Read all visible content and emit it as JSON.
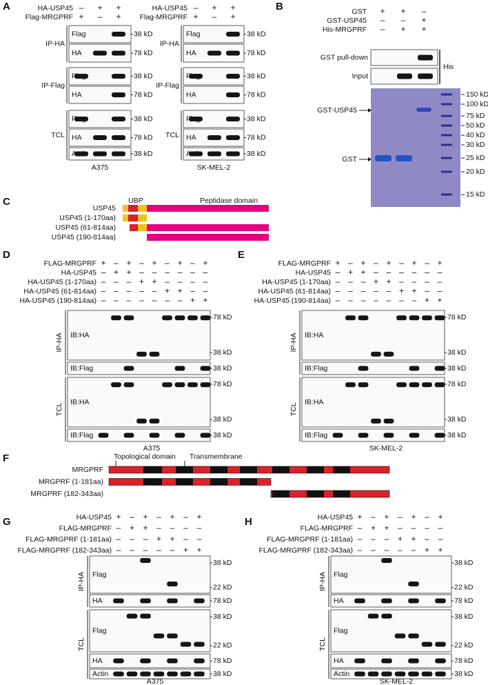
{
  "A": {
    "label": "A",
    "blots": [
      {
        "rows": [
          {
            "name": "HA-USP45",
            "signs": [
              "–",
              "+",
              "+"
            ]
          },
          {
            "name": "Flag-MRGPRF",
            "signs": [
              "+",
              "–",
              "+"
            ]
          }
        ],
        "groups": [
          {
            "name": "IP-HA",
            "lanes": [
              {
                "name": "Flag",
                "markers": [
                  "38 kD"
                ]
              },
              {
                "name": "HA",
                "markers": [
                  "78 kD"
                ]
              }
            ]
          },
          {
            "name": "IP-Flag",
            "lanes": [
              {
                "name": "Flag",
                "markers": [
                  "38 kD"
                ]
              },
              {
                "name": "HA",
                "markers": [
                  "78 kD"
                ]
              }
            ]
          },
          {
            "name": "TCL",
            "lanes": [
              {
                "name": "Flag",
                "markers": [
                  "38 kD"
                ]
              },
              {
                "name": "HA",
                "markers": [
                  "78 kD"
                ]
              },
              {
                "name": "Actin",
                "markers": [
                  "38 kD"
                ]
              }
            ]
          }
        ],
        "cell": "A375"
      },
      {
        "rows": [
          {
            "name": "HA-USP45",
            "signs": [
              "–",
              "+",
              "+"
            ]
          },
          {
            "name": "Flag-MRGPRF",
            "signs": [
              "+",
              "–",
              "+"
            ]
          }
        ],
        "groups": [
          {
            "name": "IP-HA",
            "lanes": [
              {
                "name": "Flag",
                "markers": [
                  "38 kD"
                ]
              },
              {
                "name": "HA",
                "markers": [
                  "78 kD"
                ]
              }
            ]
          },
          {
            "name": "IP-Flag",
            "lanes": [
              {
                "name": "Flag",
                "markers": [
                  "38 kD"
                ]
              },
              {
                "name": "HA",
                "markers": [
                  "78 kD"
                ]
              }
            ]
          },
          {
            "name": "TCL",
            "lanes": [
              {
                "name": "Flag",
                "markers": [
                  "38 kD"
                ]
              },
              {
                "name": "HA",
                "markers": [
                  "78 kD"
                ]
              },
              {
                "name": "Actin",
                "markers": [
                  "38 kD"
                ]
              }
            ]
          }
        ],
        "cell": "SK-MEL-2"
      }
    ]
  },
  "B": {
    "label": "B",
    "rows": [
      {
        "name": "GST",
        "signs": [
          "+",
          "+",
          "–"
        ]
      },
      {
        "name": "GST-USP45",
        "signs": [
          "–",
          "–",
          "+"
        ]
      },
      {
        "name": "His-MRGPRF",
        "signs": [
          "–",
          "+",
          "+"
        ]
      }
    ],
    "blots": [
      "GST pull-down",
      "Input"
    ],
    "probe": "His",
    "ladder": [
      "150 kD",
      "100 kD",
      "75 kD",
      "50 kD",
      "40 kD",
      "30 kD",
      "25 kD",
      "20 kD",
      "15 kD"
    ],
    "arrows": [
      "GST-USP45",
      "GST"
    ]
  },
  "C": {
    "label": "C",
    "domains": [
      "UBP",
      "Peptidase domain"
    ],
    "constructs": [
      "USP45",
      "USP45 (1-170aa)",
      "USP45 (61-814aa)",
      "USP45 (190-814aa)"
    ]
  },
  "D": {
    "label": "D",
    "rows": [
      {
        "name": "FLAG-MRGPRF",
        "signs": [
          "+",
          "–",
          "+",
          "–",
          "+",
          "–",
          "+",
          "–",
          "+"
        ]
      },
      {
        "name": "HA-USP45",
        "signs": [
          "–",
          "+",
          "+",
          "–",
          "–",
          "–",
          "–",
          "–",
          "–"
        ]
      },
      {
        "name": "HA-USP45 (1-170aa)",
        "signs": [
          "–",
          "–",
          "–",
          "+",
          "+",
          "–",
          "–",
          "–",
          "–"
        ]
      },
      {
        "name": "HA-USP45 (61-814aa)",
        "signs": [
          "–",
          "–",
          "–",
          "–",
          "–",
          "+",
          "+",
          "–",
          "–"
        ]
      },
      {
        "name": "HA-USP45 (190-814aa)",
        "signs": [
          "–",
          "–",
          "–",
          "–",
          "–",
          "–",
          "–",
          "+",
          "+"
        ]
      }
    ],
    "groups": [
      {
        "name": "IP-HA",
        "lanes": [
          {
            "name": "IB:HA",
            "markers": [
              "78 kD",
              "38 kD"
            ]
          },
          {
            "name": "IB:Flag",
            "markers": [
              "38 kD"
            ]
          }
        ]
      },
      {
        "name": "TCL",
        "lanes": [
          {
            "name": "IB:HA",
            "markers": [
              "78 kD",
              "38 kD"
            ]
          },
          {
            "name": "IB:Flag",
            "markers": [
              "38 kD"
            ]
          }
        ]
      }
    ],
    "cell": "A375"
  },
  "E": {
    "label": "E",
    "rows": [
      {
        "name": "FLAG-MRGPRF",
        "signs": [
          "+",
          "–",
          "+",
          "–",
          "+",
          "–",
          "+",
          "–",
          "+"
        ]
      },
      {
        "name": "HA-USP45",
        "signs": [
          "–",
          "+",
          "+",
          "–",
          "–",
          "–",
          "–",
          "–",
          "–"
        ]
      },
      {
        "name": "HA-USP45 (1-170aa)",
        "signs": [
          "–",
          "–",
          "–",
          "+",
          "+",
          "–",
          "–",
          "–",
          "–"
        ]
      },
      {
        "name": "HA-USP45 (61-814aa)",
        "signs": [
          "–",
          "–",
          "–",
          "–",
          "–",
          "+",
          "+",
          "–",
          "–"
        ]
      },
      {
        "name": "HA-USP45 (190-814aa)",
        "signs": [
          "–",
          "–",
          "–",
          "–",
          "–",
          "–",
          "–",
          "+",
          "+"
        ]
      }
    ],
    "groups": [
      {
        "name": "IP-HA",
        "lanes": [
          {
            "name": "IB:HA",
            "markers": [
              "78 kD",
              "38 kD"
            ]
          },
          {
            "name": "IB:Flag",
            "markers": [
              "38 kD"
            ]
          }
        ]
      },
      {
        "name": "TCL",
        "lanes": [
          {
            "name": "IB:HA",
            "markers": [
              "78 kD",
              "38 kD"
            ]
          },
          {
            "name": "IB:Flag",
            "markers": [
              "38 kD"
            ]
          }
        ]
      }
    ],
    "cell": "SK-MEL-2"
  },
  "F": {
    "label": "F",
    "domains": [
      "Topological domain",
      "Transmembrane"
    ],
    "constructs": [
      "MRGPRF",
      "MRGPRF (1-181aa)",
      "MRGPRF (182-343aa)"
    ]
  },
  "G": {
    "label": "G",
    "rows": [
      {
        "name": "HA-USP45",
        "signs": [
          "+",
          "–",
          "+",
          "–",
          "+",
          "–",
          "+"
        ]
      },
      {
        "name": "FLAG-MRGPRF",
        "signs": [
          "–",
          "+",
          "+",
          "–",
          "–",
          "–",
          "–"
        ]
      },
      {
        "name": "FLAG-MRGPRF (1-181aa)",
        "signs": [
          "–",
          "–",
          "–",
          "+",
          "+",
          "–",
          "–"
        ]
      },
      {
        "name": "FLAG-MRGPRF (182-343aa)",
        "signs": [
          "–",
          "–",
          "–",
          "–",
          "–",
          "+",
          "+"
        ]
      }
    ],
    "groups": [
      {
        "name": "IP-HA",
        "lanes": [
          {
            "name": "Flag",
            "markers": [
              "38 kD",
              "22 kD"
            ]
          },
          {
            "name": "HA",
            "markers": [
              "78 kD"
            ]
          }
        ]
      },
      {
        "name": "TCL",
        "lanes": [
          {
            "name": "Flag",
            "markers": [
              "38 kD",
              "22 kD"
            ]
          },
          {
            "name": "HA",
            "markers": [
              "78 kD"
            ]
          },
          {
            "name": "Actin",
            "markers": [
              "38 kD"
            ]
          }
        ]
      }
    ],
    "cell": "A375"
  },
  "H": {
    "label": "H",
    "rows": [
      {
        "name": "HA-USP45",
        "signs": [
          "+",
          "–",
          "+",
          "–",
          "+",
          "–",
          "+"
        ]
      },
      {
        "name": "FLAG-MRGPRF",
        "signs": [
          "–",
          "+",
          "+",
          "–",
          "–",
          "–",
          "–"
        ]
      },
      {
        "name": "FLAG-MRGPRF (1-181aa)",
        "signs": [
          "–",
          "–",
          "–",
          "+",
          "+",
          "–",
          "–"
        ]
      },
      {
        "name": "FLAG-MRGPRF (182-343aa)",
        "signs": [
          "–",
          "–",
          "–",
          "–",
          "–",
          "+",
          "+"
        ]
      }
    ],
    "groups": [
      {
        "name": "IP-HA",
        "lanes": [
          {
            "name": "Flag",
            "markers": [
              "38 kD",
              "22 kD"
            ]
          },
          {
            "name": "HA",
            "markers": [
              "78 kD"
            ]
          }
        ]
      },
      {
        "name": "TCL",
        "lanes": [
          {
            "name": "Flag",
            "markers": [
              "38 kD",
              "22 kD"
            ]
          },
          {
            "name": "HA",
            "markers": [
              "78 kD"
            ]
          },
          {
            "name": "Actin",
            "markers": [
              "38 kD"
            ]
          }
        ]
      }
    ],
    "cell": "SK-MEL-2"
  }
}
